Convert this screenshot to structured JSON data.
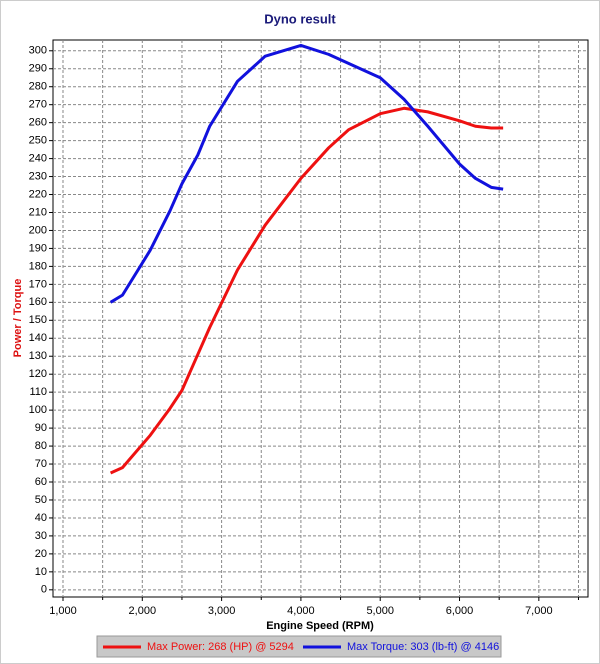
{
  "chart_data": {
    "type": "line",
    "title": "Dyno result",
    "x_label": "Engine Speed (RPM)",
    "y_label": "Power / Torque",
    "x": [
      1600,
      1750,
      2100,
      2350,
      2500,
      2700,
      2850,
      3200,
      3550,
      4000,
      4350,
      4600,
      5000,
      5300,
      5600,
      6000,
      6200,
      6400,
      6550
    ],
    "series": [
      {
        "name": "Max Power: 268 (HP) @ 5294",
        "color": "#ee1111",
        "values": [
          65,
          68,
          86,
          101,
          111,
          131,
          146,
          178,
          203,
          229,
          246,
          256,
          265,
          268,
          266,
          261,
          258,
          257,
          257
        ]
      },
      {
        "name": "Max Torque: 303 (lb-ft) @ 4146",
        "color": "#1111dd",
        "values": [
          160,
          164,
          189,
          211,
          226,
          242,
          258,
          283,
          297,
          303,
          298,
          293,
          285,
          273,
          258,
          237,
          229,
          224,
          223
        ]
      }
    ],
    "xlim": [
      874,
      7620
    ],
    "xticks": [
      {
        "value": 1000,
        "label": "1,000"
      },
      {
        "value": 2000,
        "label": "2,000"
      },
      {
        "value": 3000,
        "label": "3,000"
      },
      {
        "value": 4000,
        "label": "4,000"
      },
      {
        "value": 5000,
        "label": "5,000"
      },
      {
        "value": 6000,
        "label": "6,000"
      },
      {
        "value": 7000,
        "label": "7,000"
      }
    ],
    "xminorticks": [
      1500,
      2500,
      3500,
      4500,
      5500,
      6500,
      7500
    ],
    "ylim": [
      -4,
      306
    ],
    "yticks": [
      0,
      10,
      20,
      30,
      40,
      50,
      60,
      70,
      80,
      90,
      100,
      110,
      120,
      130,
      140,
      150,
      160,
      170,
      180,
      190,
      200,
      210,
      220,
      230,
      240,
      250,
      260,
      270,
      280,
      290,
      300
    ],
    "grid": true,
    "legend": "bottom"
  }
}
